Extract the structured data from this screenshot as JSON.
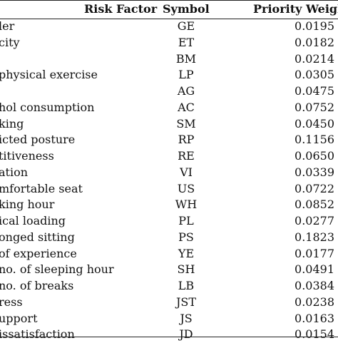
{
  "table": {
    "headers": {
      "factor": "Risk Factor",
      "symbol": "Symbol",
      "weight": "Priority Weigh"
    },
    "rows": [
      {
        "factor": "ler",
        "symbol": "GE",
        "weight": "0.0195"
      },
      {
        "factor": "city",
        "symbol": "ET",
        "weight": "0.0182"
      },
      {
        "factor": "",
        "symbol": "BM",
        "weight": "0.0214"
      },
      {
        "factor": "physical exercise",
        "symbol": "LP",
        "weight": "0.0305"
      },
      {
        "factor": "",
        "symbol": "AG",
        "weight": "0.0475"
      },
      {
        "factor": "hol consumption",
        "symbol": "AC",
        "weight": "0.0752"
      },
      {
        "factor": "king",
        "symbol": "SM",
        "weight": "0.0450"
      },
      {
        "factor": "icted posture",
        "symbol": "RP",
        "weight": "0.1156"
      },
      {
        "factor": "titiveness",
        "symbol": "RE",
        "weight": "0.0650"
      },
      {
        "factor": "ation",
        "symbol": "VI",
        "weight": "0.0339"
      },
      {
        "factor": "mfortable seat",
        "symbol": "US",
        "weight": "0.0722"
      },
      {
        "factor": "king hour",
        "symbol": "WH",
        "weight": "0.0852"
      },
      {
        "factor": "ical loading",
        "symbol": "PL",
        "weight": "0.0277"
      },
      {
        "factor": "onged sitting",
        "symbol": "PS",
        "weight": "0.1823"
      },
      {
        "factor": "of experience",
        "symbol": "YE",
        "weight": "0.0177"
      },
      {
        "factor": "no. of sleeping hour",
        "symbol": "SH",
        "weight": "0.0491"
      },
      {
        "factor": "no. of breaks",
        "symbol": "LB",
        "weight": "0.0384"
      },
      {
        "factor": "ress",
        "symbol": "JST",
        "weight": "0.0238"
      },
      {
        "factor": "upport",
        "symbol": "JS",
        "weight": "0.0163"
      },
      {
        "factor": "issatisfaction",
        "symbol": "JD",
        "weight": "0.0154"
      }
    ]
  }
}
